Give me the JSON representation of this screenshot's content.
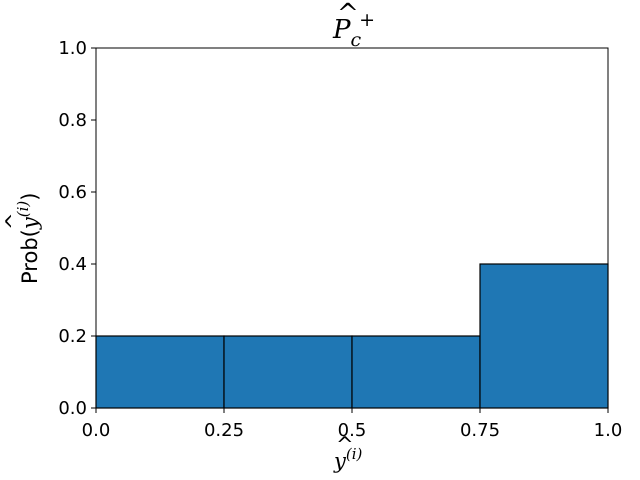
{
  "chart_data": {
    "type": "bar",
    "title": {
      "base": "P",
      "hat": "^",
      "subscript": "c",
      "superscript": "+"
    },
    "xlabel": {
      "base": "y",
      "hat": "^",
      "superscript": "(i)"
    },
    "ylabel": {
      "prefix": "Prob(",
      "base": "y",
      "hat": "^",
      "superscript": "(i)",
      "suffix": ")"
    },
    "bins": [
      {
        "start": 0.0,
        "end": 0.25,
        "value": 0.2
      },
      {
        "start": 0.25,
        "end": 0.5,
        "value": 0.2
      },
      {
        "start": 0.5,
        "end": 0.75,
        "value": 0.2
      },
      {
        "start": 0.75,
        "end": 1.0,
        "value": 0.4
      }
    ],
    "xlim": [
      0.0,
      1.0
    ],
    "ylim": [
      0.0,
      1.0
    ],
    "xticks": [
      0.0,
      0.25,
      0.5,
      0.75,
      1.0
    ],
    "xtick_labels": [
      "0.0",
      "0.25",
      "0.5",
      "0.75",
      "1.0"
    ],
    "yticks": [
      0.0,
      0.2,
      0.4,
      0.6,
      0.8,
      1.0
    ],
    "ytick_labels": [
      "0.0",
      "0.2",
      "0.4",
      "0.6",
      "0.8",
      "1.0"
    ],
    "grid": false,
    "bar_color": "#1f77b4",
    "edge_color": "#000000"
  }
}
